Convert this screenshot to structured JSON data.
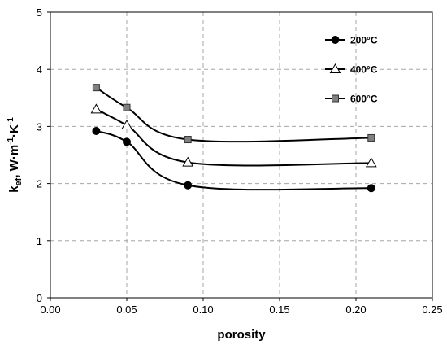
{
  "chart_data": {
    "type": "line",
    "title": "",
    "xlabel": "porosity",
    "ylabel_main": "k",
    "ylabel_sub": "ef",
    "ylabel_tail": ", W·m",
    "ylabel_sup1": "-1",
    "ylabel_mid": "·K",
    "ylabel_sup2": "-1",
    "xlim": [
      0.0,
      0.25
    ],
    "ylim": [
      0,
      5
    ],
    "xticks": [
      "0.00",
      "0.05",
      "0.10",
      "0.15",
      "0.20",
      "0.25"
    ],
    "yticks": [
      "0",
      "1",
      "2",
      "3",
      "4",
      "5"
    ],
    "grid": true,
    "legend_position": "top-right",
    "series": [
      {
        "name": "200°C",
        "marker": "circle",
        "color": "#000000",
        "x": [
          0.03,
          0.05,
          0.09,
          0.21
        ],
        "y": [
          2.92,
          2.73,
          1.97,
          1.92
        ]
      },
      {
        "name": "400°C",
        "marker": "triangle",
        "color": "#ffffff",
        "x": [
          0.03,
          0.05,
          0.09,
          0.21
        ],
        "y": [
          3.3,
          3.02,
          2.37,
          2.36
        ]
      },
      {
        "name": "600°C",
        "marker": "square",
        "color": "#808080",
        "x": [
          0.03,
          0.05,
          0.09,
          0.21
        ],
        "y": [
          3.68,
          3.33,
          2.77,
          2.8
        ]
      }
    ]
  }
}
